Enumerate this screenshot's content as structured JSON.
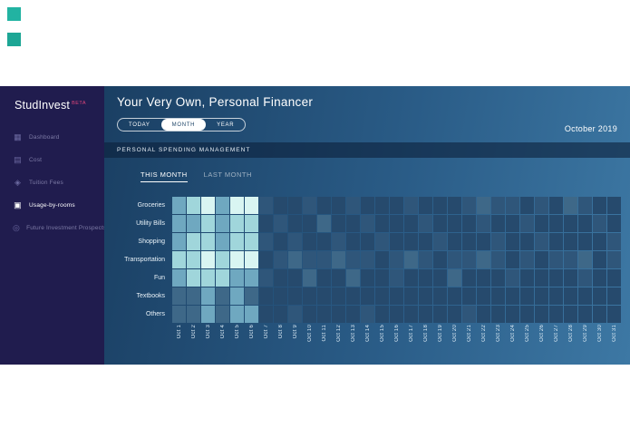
{
  "decorations": {
    "squares": [
      {
        "name": "teal-square-top",
        "color": "#22b3a2"
      },
      {
        "name": "teal-square-bottom",
        "color": "#1da695"
      }
    ]
  },
  "sidebar": {
    "brand": "StudInvest",
    "badge": "BETA",
    "badge_color": "#e0457b",
    "items": [
      {
        "label": "Dashboard",
        "icon": "dashboard-icon",
        "active": false
      },
      {
        "label": "Cost",
        "icon": "cost-icon",
        "active": false
      },
      {
        "label": "Tuition Fees",
        "icon": "tuition-fees-icon",
        "active": false
      },
      {
        "label": "Usage-by-rooms",
        "icon": "usage-by-rooms-icon",
        "active": true
      },
      {
        "label": "Future Investment Prospects",
        "icon": "future-investment-icon",
        "active": false
      }
    ]
  },
  "header": {
    "title": "Your Very Own, Personal Financer",
    "period_tabs": [
      "TODAY",
      "MONTH",
      "YEAR"
    ],
    "selected_period": "MONTH",
    "date_label": "October 2019"
  },
  "panel": {
    "title": "PERSONAL SPENDING MANAGEMENT",
    "tabs": [
      "THIS MONTH",
      "LAST MONTH"
    ],
    "active_tab": "THIS MONTH"
  },
  "chart_data": {
    "type": "heatmap",
    "title": "PERSONAL SPENDING MANAGEMENT",
    "rows": [
      "Groceries",
      "Utility Bills",
      "Shopping",
      "Transportation",
      "Fun",
      "Textbooks",
      "Others"
    ],
    "columns": [
      "Oct 1",
      "Oct 2",
      "Oct 3",
      "Oct 4",
      "Oct 5",
      "Oct 6",
      "Oct 7",
      "Oct 8",
      "Oct 9",
      "Oct 10",
      "Oct 11",
      "Oct 12",
      "Oct 13",
      "Oct 14",
      "Oct 15",
      "Oct 16",
      "Oct 17",
      "Oct 18",
      "Oct 19",
      "Oct 20",
      "Oct 21",
      "Oct 22",
      "Oct 23",
      "Oct 24",
      "Oct 25",
      "Oct 26",
      "Oct 27",
      "Oct 28",
      "Oct 29",
      "Oct 30",
      "Oct 31"
    ],
    "legend": "none",
    "value_scale_note": "intensity levels 0 (low / dark) to 6 (high / light); Oct 1-6 show recorded spending, Oct 7-31 mostly empty",
    "palette": [
      "#1d3e60",
      "#264a6d",
      "#2f567a",
      "#3e6888",
      "#6fa8c0",
      "#a0d6db",
      "#d9f5f2"
    ],
    "values": [
      [
        4,
        5,
        6,
        4,
        6,
        6,
        2,
        1,
        1,
        2,
        1,
        1,
        2,
        1,
        1,
        1,
        2,
        1,
        1,
        1,
        2,
        3,
        2,
        2,
        1,
        2,
        1,
        3,
        2,
        1,
        1
      ],
      [
        4,
        4,
        5,
        4,
        5,
        5,
        1,
        2,
        1,
        1,
        3,
        1,
        1,
        2,
        1,
        1,
        1,
        2,
        1,
        1,
        1,
        2,
        1,
        1,
        2,
        1,
        1,
        1,
        1,
        2,
        1
      ],
      [
        4,
        5,
        5,
        4,
        5,
        5,
        2,
        1,
        2,
        1,
        1,
        2,
        1,
        1,
        2,
        1,
        1,
        1,
        2,
        1,
        1,
        1,
        2,
        1,
        1,
        2,
        1,
        1,
        1,
        1,
        2
      ],
      [
        5,
        5,
        6,
        5,
        6,
        6,
        1,
        2,
        3,
        2,
        2,
        3,
        2,
        2,
        1,
        2,
        3,
        2,
        1,
        2,
        2,
        3,
        2,
        1,
        2,
        1,
        2,
        2,
        3,
        1,
        2
      ],
      [
        4,
        5,
        5,
        5,
        4,
        4,
        2,
        1,
        1,
        3,
        1,
        1,
        3,
        1,
        1,
        2,
        1,
        1,
        1,
        3,
        1,
        1,
        1,
        2,
        1,
        1,
        1,
        1,
        2,
        1,
        1
      ],
      [
        3,
        3,
        4,
        3,
        4,
        3,
        1,
        1,
        1,
        1,
        1,
        1,
        1,
        1,
        1,
        1,
        1,
        1,
        1,
        1,
        1,
        1,
        1,
        1,
        1,
        1,
        1,
        1,
        1,
        1,
        1
      ],
      [
        3,
        3,
        4,
        3,
        4,
        4,
        1,
        1,
        2,
        1,
        1,
        1,
        1,
        2,
        1,
        1,
        1,
        1,
        1,
        1,
        2,
        1,
        1,
        1,
        1,
        1,
        1,
        1,
        1,
        1,
        1
      ]
    ]
  },
  "colors": {
    "sidebar_bg": "#201c4e",
    "main_gradient_start": "#1a3f63",
    "main_gradient_end": "#3d78a4",
    "band_bg": "#16395c"
  }
}
